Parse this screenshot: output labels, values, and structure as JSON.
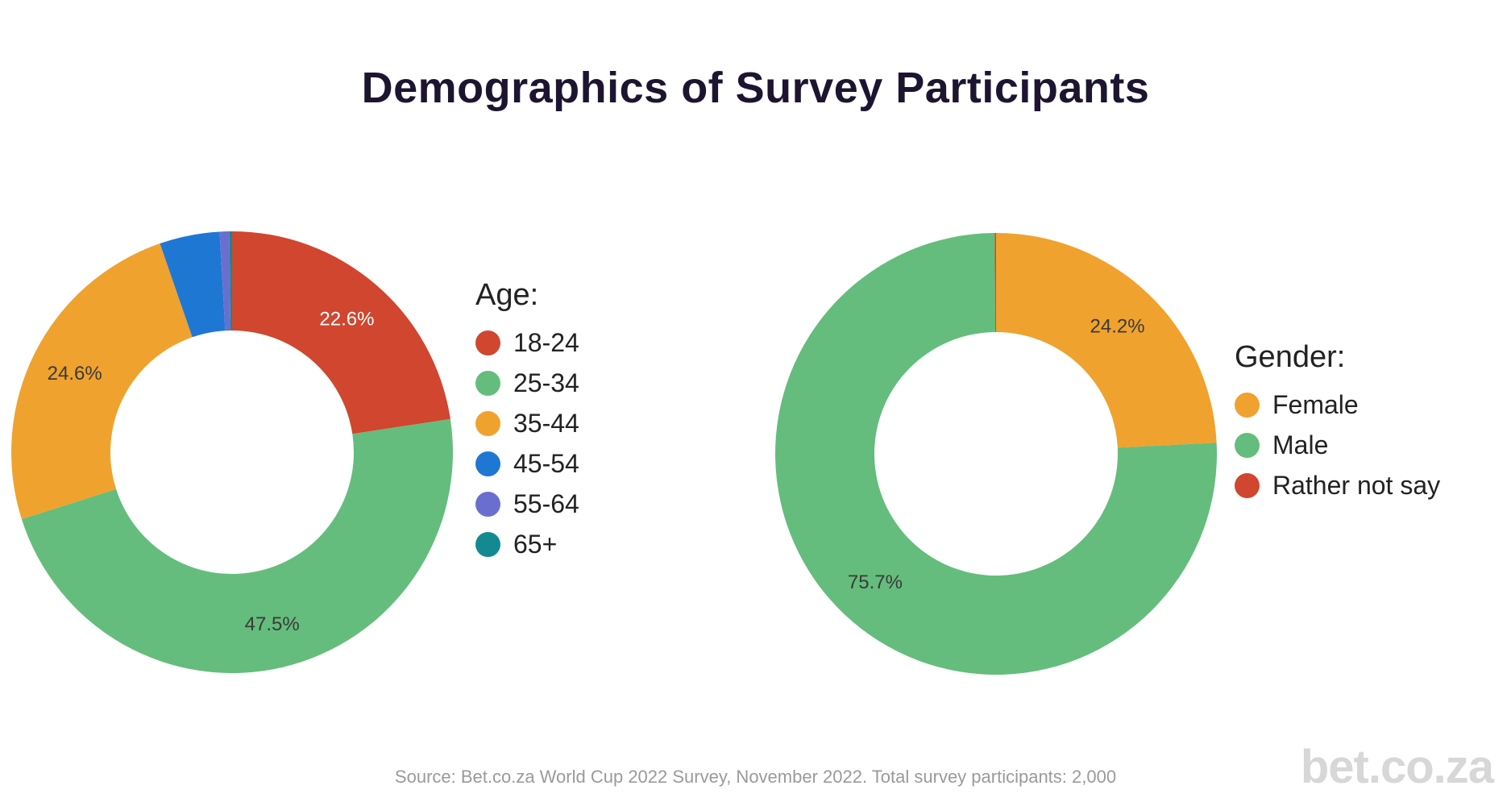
{
  "title": "Demographics of Survey Participants",
  "source": "Source: Bet.co.za World Cup 2022 Survey, November 2022. Total survey participants: 2,000",
  "logo": "bet.co.za",
  "chart_data": [
    {
      "type": "pie",
      "legend_title": "Age:",
      "legend_position": "right",
      "categories": [
        "18-24",
        "25-34",
        "35-44",
        "45-54",
        "55-64",
        "65+"
      ],
      "values": [
        22.6,
        47.5,
        24.6,
        4.4,
        0.7,
        0.2
      ],
      "value_labels": [
        "22.6%",
        "47.5%",
        "24.6%",
        "",
        "",
        ""
      ],
      "colors": [
        "#d0462f",
        "#64bd7c",
        "#f0a22e",
        "#1f77d4",
        "#6a6fcf",
        "#138a91"
      ]
    },
    {
      "type": "pie",
      "legend_title": "Gender:",
      "legend_position": "right",
      "categories": [
        "Female",
        "Male",
        "Rather not say"
      ],
      "values": [
        24.2,
        75.7,
        0.1
      ],
      "value_labels": [
        "24.2%",
        "75.7%",
        ""
      ],
      "colors": [
        "#f0a22e",
        "#64bd7c",
        "#d0462f"
      ]
    }
  ]
}
